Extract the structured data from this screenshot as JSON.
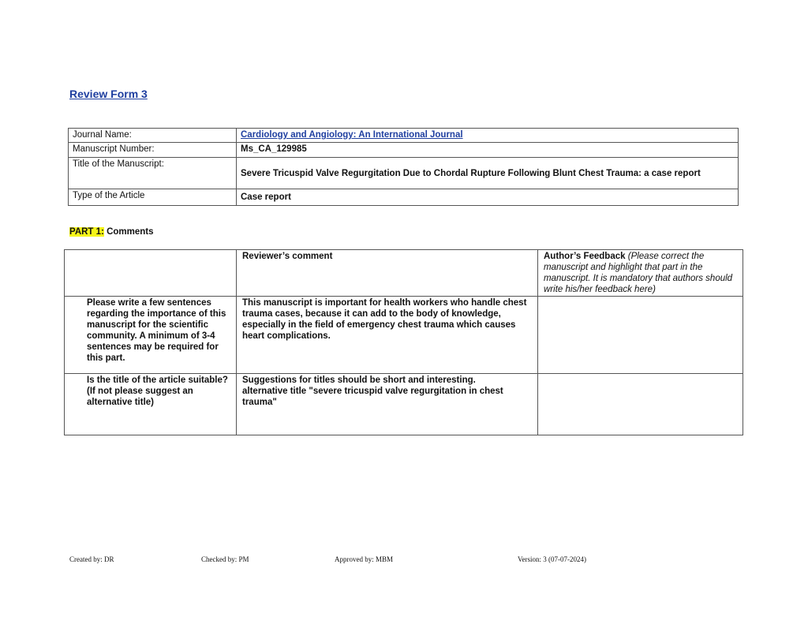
{
  "title": "Review Form 3",
  "info": {
    "journal_label": "Journal Name:",
    "journal_value": "Cardiology and Angiology: An International Journal",
    "manuscript_number_label": "Manuscript Number:",
    "manuscript_number_value": "Ms_CA_129985",
    "manuscript_title_label": "Title of the Manuscript:",
    "manuscript_title_value": "Severe Tricuspid Valve Regurgitation Due to Chordal Rupture Following Blunt Chest Trauma: a case report",
    "article_type_label": "Type of the Article",
    "article_type_value": "Case report"
  },
  "part1": {
    "label": "PART  1:",
    "heading": "Comments",
    "header": {
      "reviewer": "Reviewer’s comment",
      "author": "Author’s Feedback",
      "author_note": "(Please correct the manuscript and highlight that part in the manuscript. It is mandatory that authors should write his/her feedback here)"
    },
    "rows": [
      {
        "question": "Please write a few sentences regarding the importance of this manuscript for the scientific community. A minimum of 3-4 sentences may be required for this part.",
        "comment": "This manuscript is important for health workers who handle chest trauma cases, because it can add to the body of knowledge, especially in the field of emergency chest trauma which causes heart complications.",
        "feedback": ""
      },
      {
        "question_line1": "Is the title of the article suitable?",
        "question_line2": "(If not please suggest an alternative title)",
        "comment_line1": "Suggestions for titles should be short and interesting.",
        "comment_line2": "alternative title \"severe tricuspid valve regurgitation in chest trauma\"",
        "feedback": ""
      }
    ]
  },
  "footer": {
    "created": "Created by: DR",
    "checked": "Checked by: PM",
    "approved": "Approved by: MBM",
    "version": "Version: 3 (07-07-2024)"
  }
}
